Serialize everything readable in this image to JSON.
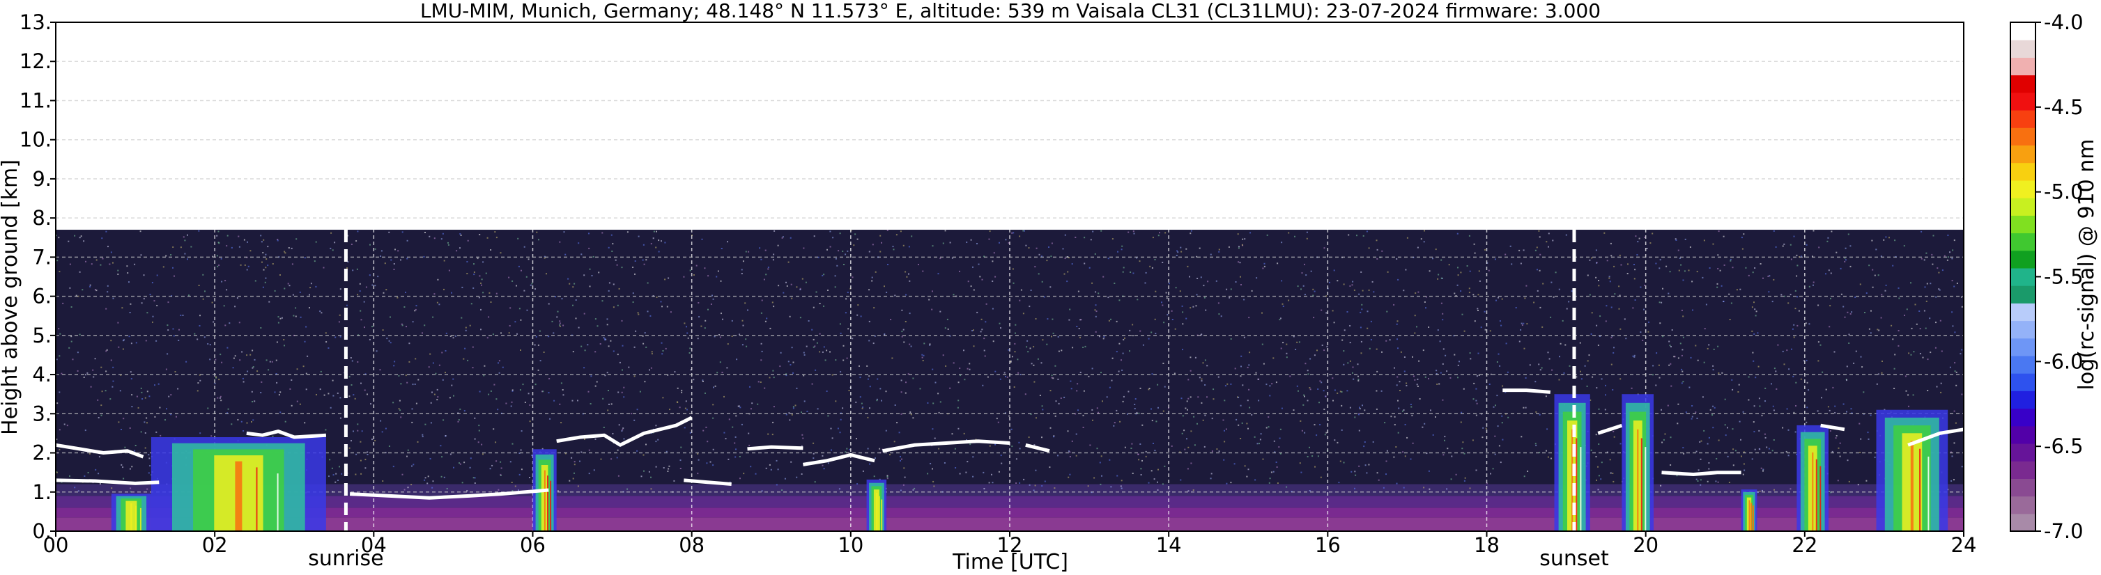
{
  "chart_data": {
    "type": "heatmap",
    "title": "LMU-MIM, Munich, Germany; 48.148° N 11.573° E, altitude: 539 m    Vaisala CL31 (CL31LMU): 23-07-2024    firmware: 3.000",
    "xlabel": "Time [UTC]",
    "ylabel": "Height above ground [km]",
    "xlim": [
      0,
      24
    ],
    "ylim": [
      0,
      13
    ],
    "x_ticks": [
      "00",
      "02",
      "04",
      "06",
      "08",
      "10",
      "12",
      "14",
      "16",
      "18",
      "20",
      "22",
      "24"
    ],
    "y_ticks": [
      "0.",
      "1.",
      "2.",
      "3.",
      "4.",
      "5.",
      "6.",
      "7.",
      "8.",
      "9.",
      "10.",
      "11.",
      "12.",
      "13."
    ],
    "grid": true,
    "signal_max_height_km": 7.7,
    "colorbar": {
      "label": "log(rc-signal) @ 910 nm",
      "range": [
        -7.0,
        -4.0
      ],
      "ticks": [
        "-4.0",
        "-4.5",
        "-5.0",
        "-5.5",
        "-6.0",
        "-6.5",
        "-7.0"
      ],
      "colors": [
        "#a88aa8",
        "#9a6a9a",
        "#8a4a92",
        "#7a2a90",
        "#661499",
        "#5200a8",
        "#3800c8",
        "#2020e0",
        "#2e52ee",
        "#4a78f2",
        "#6e96f6",
        "#94b2f8",
        "#b8ccfa",
        "#1a9a6a",
        "#20b48a",
        "#10a020",
        "#40c830",
        "#80e020",
        "#c8f020",
        "#f0f020",
        "#f8d010",
        "#f8a010",
        "#f87010",
        "#f84010",
        "#f01010",
        "#e00000",
        "#f0b0b0",
        "#e8d8d8",
        "#ffffff"
      ]
    },
    "sun_events": [
      {
        "label": "sunrise",
        "time_h": 3.65
      },
      {
        "label": "sunset",
        "time_h": 19.1
      }
    ],
    "cloud_base_segments": [
      {
        "x": [
          0.0,
          0.3,
          0.6,
          0.9,
          1.1
        ],
        "y": [
          2.2,
          2.1,
          2.0,
          2.05,
          1.9
        ]
      },
      {
        "x": [
          0.0,
          0.5,
          1.0,
          1.3
        ],
        "y": [
          1.3,
          1.28,
          1.22,
          1.25
        ]
      },
      {
        "x": [
          2.4,
          2.6,
          2.8,
          3.0,
          3.4
        ],
        "y": [
          2.5,
          2.45,
          2.55,
          2.4,
          2.45
        ]
      },
      {
        "x": [
          3.7,
          4.2,
          4.7,
          5.2,
          5.6,
          6.2
        ],
        "y": [
          0.95,
          0.9,
          0.85,
          0.9,
          0.95,
          1.05
        ]
      },
      {
        "x": [
          6.3,
          6.6,
          6.9,
          7.1,
          7.4,
          7.8,
          8.0
        ],
        "y": [
          2.3,
          2.4,
          2.45,
          2.2,
          2.5,
          2.7,
          2.9
        ]
      },
      {
        "x": [
          7.9,
          8.2,
          8.5
        ],
        "y": [
          1.3,
          1.25,
          1.2
        ]
      },
      {
        "x": [
          8.7,
          9.0,
          9.4
        ],
        "y": [
          2.1,
          2.15,
          2.12
        ]
      },
      {
        "x": [
          9.4,
          9.7,
          10.0,
          10.3
        ],
        "y": [
          1.7,
          1.8,
          1.95,
          1.8
        ]
      },
      {
        "x": [
          10.4,
          10.8,
          11.2,
          11.6,
          12.0
        ],
        "y": [
          2.05,
          2.2,
          2.25,
          2.3,
          2.25
        ]
      },
      {
        "x": [
          12.2,
          12.5
        ],
        "y": [
          2.2,
          2.05
        ]
      },
      {
        "x": [
          18.2,
          18.5,
          18.8
        ],
        "y": [
          3.6,
          3.6,
          3.55
        ]
      },
      {
        "x": [
          19.4,
          19.7
        ],
        "y": [
          2.5,
          2.7
        ]
      },
      {
        "x": [
          20.2,
          20.6,
          20.9,
          21.2
        ],
        "y": [
          1.5,
          1.45,
          1.5,
          1.5
        ]
      },
      {
        "x": [
          22.2,
          22.5
        ],
        "y": [
          2.7,
          2.6
        ]
      },
      {
        "x": [
          23.3,
          23.7,
          24.0
        ],
        "y": [
          2.2,
          2.5,
          2.6
        ]
      }
    ],
    "precip_events": [
      {
        "x0": 1.2,
        "x1": 3.4,
        "top_km": 2.4,
        "intensity": 1.0
      },
      {
        "x0": 0.7,
        "x1": 1.2,
        "top_km": 1.2,
        "intensity": 0.55
      },
      {
        "x0": 6.0,
        "x1": 6.3,
        "top_km": 2.3,
        "intensity": 0.8
      },
      {
        "x0": 10.2,
        "x1": 10.45,
        "top_km": 1.7,
        "intensity": 0.5
      },
      {
        "x0": 18.85,
        "x1": 19.3,
        "top_km": 3.5,
        "intensity": 1.0
      },
      {
        "x0": 19.7,
        "x1": 20.1,
        "top_km": 3.5,
        "intensity": 1.0
      },
      {
        "x0": 21.2,
        "x1": 21.4,
        "top_km": 1.3,
        "intensity": 0.6
      },
      {
        "x0": 21.9,
        "x1": 22.3,
        "top_km": 2.9,
        "intensity": 0.85
      },
      {
        "x0": 22.9,
        "x1": 23.8,
        "top_km": 3.1,
        "intensity": 1.0
      }
    ]
  }
}
